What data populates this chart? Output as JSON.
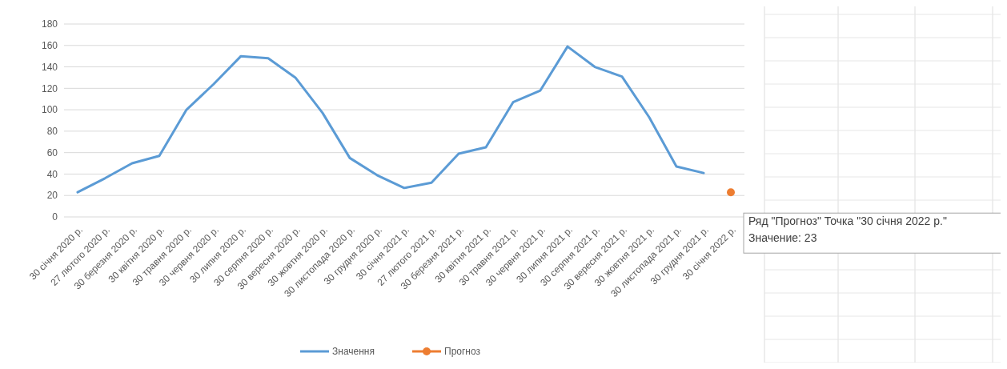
{
  "chart_data": {
    "type": "line",
    "categories": [
      "30 січня 2020 р.",
      "27 лютого 2020 р.",
      "30 березня 2020 р.",
      "30 квітня 2020 р.",
      "30 травня 2020 р.",
      "30 червня 2020 р.",
      "30 липня 2020 р.",
      "30 серпня 2020 р.",
      "30 вересня 2020 р.",
      "30 жовтня 2020 р.",
      "30 листопада 2020 р.",
      "30 грудня 2020 р.",
      "30 січня 2021 р.",
      "27 лютого 2021 р.",
      "30 березня 2021 р.",
      "30 квітня 2021 р.",
      "30 травня 2021 р.",
      "30 червня 2021 р.",
      "30 липня 2021 р.",
      "30 серпня 2021 р.",
      "30 вересня 2021 р.",
      "30 жовтня 2021 р.",
      "30 листопада 2021 р.",
      "30 грудня 2021 р.",
      "30 січня 2022 р."
    ],
    "series": [
      {
        "name": "Значення",
        "color": "#5b9bd5",
        "marker": "none",
        "values": [
          23,
          36,
          50,
          57,
          100,
          124,
          150,
          148,
          130,
          97,
          55,
          39,
          27,
          32,
          59,
          65,
          107,
          118,
          159,
          140,
          131,
          93,
          47,
          41,
          null
        ]
      },
      {
        "name": "Прогноз",
        "color": "#ed7d31",
        "marker": "circle",
        "values": [
          null,
          null,
          null,
          null,
          null,
          null,
          null,
          null,
          null,
          null,
          null,
          null,
          null,
          null,
          null,
          null,
          null,
          null,
          null,
          null,
          null,
          null,
          null,
          null,
          23
        ]
      }
    ],
    "ylim": [
      0,
      180
    ],
    "yticks": [
      0,
      20,
      40,
      60,
      80,
      100,
      120,
      140,
      160,
      180
    ],
    "grid": "y",
    "legend": "bottom",
    "annotations": [
      {
        "text": "Ряд \"Прогноз\" Точка \"30 січня 2022 р.\"\nЗначение: 23",
        "x": "30 січня 2022 р.",
        "y": 23
      }
    ]
  }
}
